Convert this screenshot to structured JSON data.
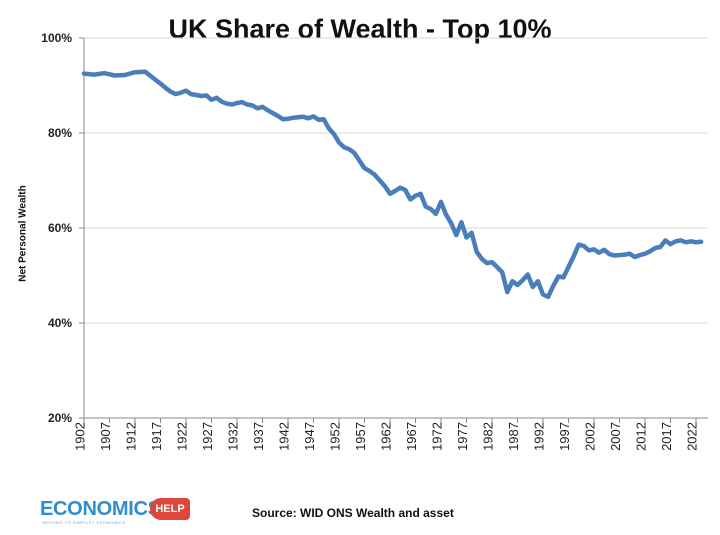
{
  "chart_data": {
    "type": "line",
    "title": "UK Share of Wealth - Top 10%",
    "ylabel": "Net Personal Wealth",
    "xlabel": "",
    "ylim": [
      20,
      100
    ],
    "y_ticks": [
      "20%",
      "40%",
      "60%",
      "80%",
      "100%"
    ],
    "y_tick_values": [
      20,
      40,
      60,
      80,
      100
    ],
    "xlim": [
      1902,
      2024
    ],
    "x_ticks": [
      "1902",
      "1907",
      "1912",
      "1917",
      "1922",
      "1927",
      "1932",
      "1937",
      "1942",
      "1947",
      "1952",
      "1957",
      "1962",
      "1967",
      "1972",
      "1977",
      "1982",
      "1987",
      "1992",
      "1997",
      "2002",
      "2007",
      "2012",
      "2017",
      "2022"
    ],
    "x_tick_values": [
      1902,
      1907,
      1912,
      1917,
      1922,
      1927,
      1932,
      1937,
      1942,
      1947,
      1952,
      1957,
      1962,
      1967,
      1972,
      1977,
      1982,
      1987,
      1992,
      1997,
      2002,
      2007,
      2012,
      2017,
      2022
    ],
    "grid": "horizontal",
    "color": "#4a7ebb",
    "series": [
      {
        "x": [
          1902,
          1904,
          1906,
          1908,
          1910,
          1912,
          1914,
          1916,
          1917,
          1918,
          1919,
          1920,
          1921,
          1922,
          1923,
          1924,
          1925,
          1926,
          1927,
          1928,
          1929,
          1930,
          1931,
          1932,
          1933,
          1934,
          1935,
          1936,
          1937,
          1938,
          1939,
          1940,
          1941,
          1942,
          1943,
          1944,
          1945,
          1946,
          1947,
          1948,
          1949,
          1950,
          1951,
          1952,
          1953,
          1954,
          1955,
          1956,
          1957,
          1958,
          1959,
          1960,
          1961,
          1962,
          1963,
          1964,
          1965,
          1966,
          1967,
          1968,
          1969,
          1970,
          1971,
          1972,
          1973,
          1974,
          1975,
          1976,
          1977,
          1978,
          1979,
          1980,
          1981,
          1982,
          1983,
          1984,
          1985,
          1986,
          1987,
          1988,
          1989,
          1990,
          1991,
          1992,
          1993,
          1994,
          1995,
          1996,
          1997,
          1998,
          1999,
          2000,
          2001,
          2002,
          2003,
          2004,
          2005,
          2006,
          2007,
          2008,
          2009,
          2010,
          2011,
          2012,
          2013,
          2014,
          2015,
          2016,
          2017,
          2018,
          2019,
          2020,
          2021,
          2022,
          2023
        ],
        "values": [
          92.5,
          92.3,
          92.6,
          92.1,
          92.2,
          92.8,
          92.9,
          91.2,
          90.4,
          89.5,
          88.7,
          88.2,
          88.5,
          88.9,
          88.2,
          88.0,
          87.8,
          87.9,
          87.0,
          87.4,
          86.6,
          86.2,
          86.0,
          86.3,
          86.5,
          86.0,
          85.8,
          85.2,
          85.5,
          84.8,
          84.2,
          83.6,
          82.9,
          83.0,
          83.2,
          83.3,
          83.4,
          83.1,
          83.5,
          82.8,
          82.9,
          81.0,
          79.8,
          78.0,
          77.0,
          76.6,
          75.8,
          74.2,
          72.6,
          72.0,
          71.2,
          70.0,
          68.8,
          67.2,
          67.8,
          68.5,
          68.0,
          66.0,
          66.8,
          67.2,
          64.5,
          64.0,
          63.0,
          65.5,
          62.8,
          61.0,
          58.5,
          61.2,
          58.0,
          59.0,
          55.0,
          53.5,
          52.6,
          52.8,
          51.8,
          50.7,
          46.5,
          48.8,
          48.0,
          49.0,
          50.2,
          47.6,
          48.8,
          46.0,
          45.5,
          47.8,
          49.8,
          49.6,
          51.8,
          54.0,
          56.5,
          56.2,
          55.3,
          55.5,
          54.8,
          55.4,
          54.5,
          54.2,
          54.3,
          54.4,
          54.6,
          53.9,
          54.3,
          54.6,
          55.1,
          55.8,
          56.0,
          57.4,
          56.6,
          57.2,
          57.4,
          57.0,
          57.2,
          57.0,
          57.1
        ]
      }
    ]
  },
  "footer": {
    "logo_text": "ECONOMICS",
    "logo_badge": "HELP",
    "logo_tagline": "HELPING TO SIMPLIFY ECONOMICS",
    "source": "Source: WID ONS Wealth and asset"
  }
}
